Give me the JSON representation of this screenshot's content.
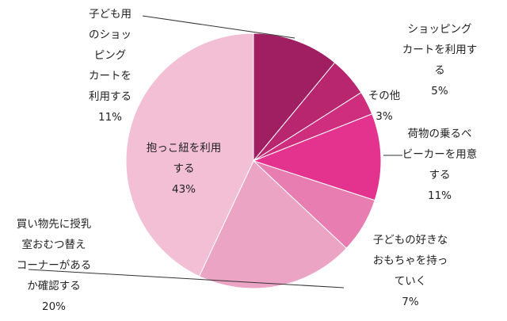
{
  "chart_data": {
    "type": "pie",
    "title": "",
    "start_angle_deg": 0,
    "direction": "clockwise",
    "slices": [
      {
        "label_lines": [
          "子ども用",
          "のショッ",
          "ピング",
          "カートを",
          "利用する",
          "11%"
        ],
        "value": 11,
        "color": "#a01e62"
      },
      {
        "label_lines": [
          "ショッピング",
          "カートを利用す",
          "る",
          "5%"
        ],
        "value": 5,
        "color": "#b8266f"
      },
      {
        "label_lines": [
          "その他",
          "3%"
        ],
        "value": 3,
        "color": "#cf2d7e"
      },
      {
        "label_lines": [
          "荷物の乗るベ",
          "ビーカーを用意",
          "する",
          "11%"
        ],
        "value": 11,
        "color": "#e3338f"
      },
      {
        "label_lines": [
          "子どもの好きな",
          "おもちゃを持っ",
          "ていく",
          "7%"
        ],
        "value": 7,
        "color": "#e77db0"
      },
      {
        "label_lines": [
          "買い物先に授乳",
          "室おむつ替え",
          "コーナーがある",
          "か確認する",
          "20%"
        ],
        "value": 20,
        "color": "#eca4c5"
      },
      {
        "label_lines": [
          "抱っこ紐を利用",
          "する",
          "43%"
        ],
        "value": 43,
        "color": "#f2bfd4"
      }
    ]
  }
}
